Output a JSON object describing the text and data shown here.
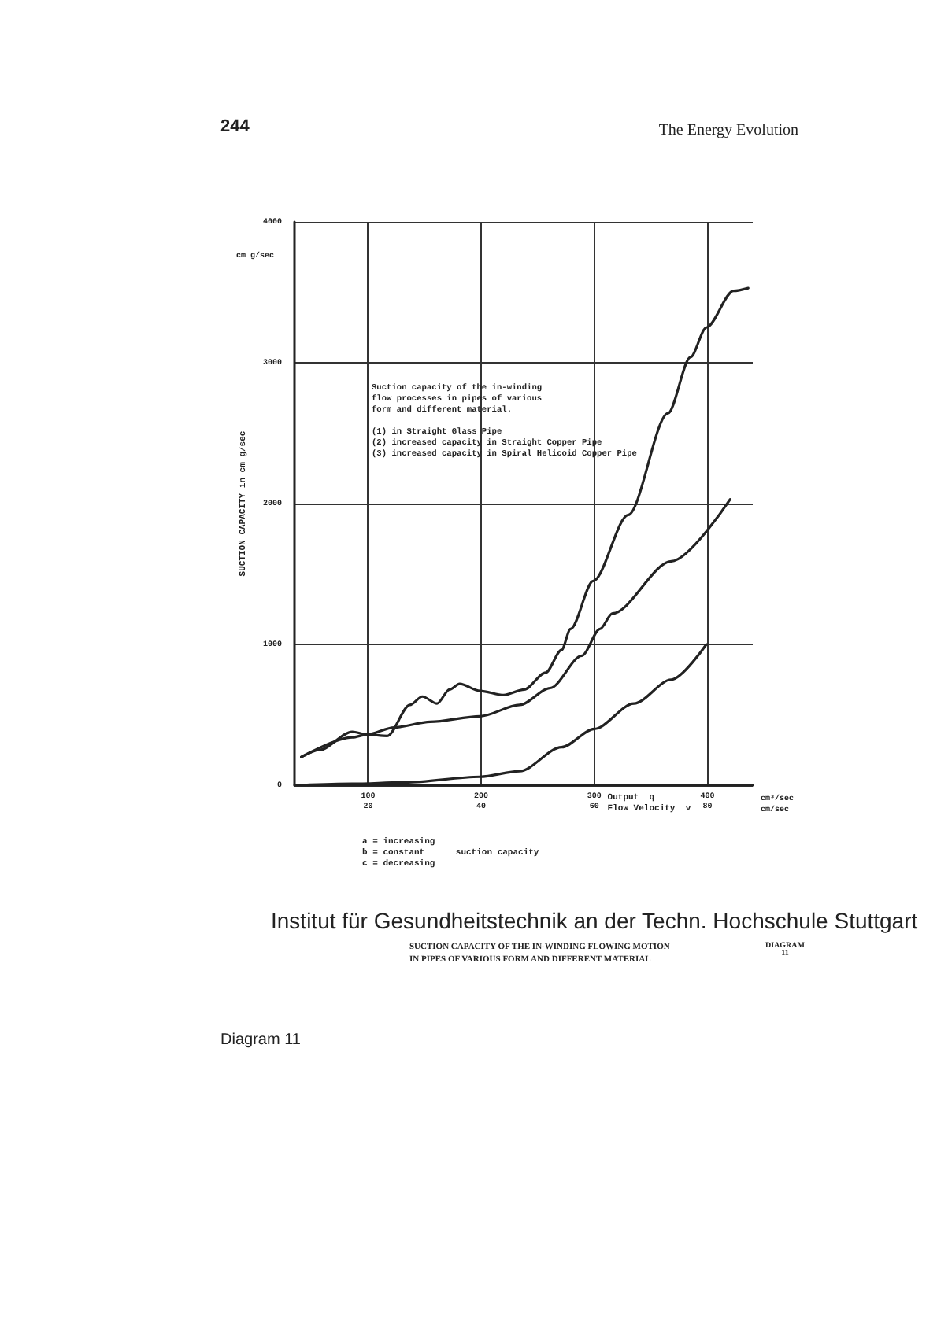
{
  "chart_data": {
    "type": "line",
    "title": "SUCTION CAPACITY OF THE IN-WINDING FLOWING MOTION\nIN PIPES OF VARIOUS FORM AND DIFFERENT MATERIAL",
    "xlabel": "Output  q\nFlow Velocity  v",
    "ylabel": "SUCTION CAPACITY in cm g/sec",
    "xlim": [
      35,
      440
    ],
    "xticks": [
      100,
      200,
      300,
      400
    ],
    "x2lim": [
      7,
      88
    ],
    "x2ticks": [
      20,
      40,
      60,
      80
    ],
    "ylim": [
      0,
      4000
    ],
    "yticks": [
      0,
      1000,
      2000,
      3000,
      4000
    ],
    "grid": true,
    "marker": "none",
    "line_style": "solid",
    "series": [
      {
        "color": "#222222",
        "x": [
          41,
          57,
          86,
          99,
          117,
          137,
          148,
          161,
          172,
          181,
          199,
          220,
          238,
          257,
          271,
          279,
          299,
          330,
          365,
          385,
          399,
          423,
          436
        ],
        "values": [
          200,
          250,
          380,
          360,
          350,
          570,
          630,
          580,
          680,
          720,
          670,
          640,
          680,
          800,
          960,
          1110,
          1450,
          1920,
          2640,
          3040,
          3250,
          3510,
          3530
        ]
      },
      {
        "color": "#222222",
        "x": [
          41,
          86,
          99,
          123,
          155,
          199,
          234,
          261,
          289,
          305,
          316,
          368,
          420
        ],
        "values": [
          200,
          340,
          360,
          410,
          450,
          490,
          570,
          690,
          920,
          1110,
          1220,
          1590,
          2030
        ]
      },
      {
        "color": "#222222",
        "x": [
          41,
          86,
          133,
          199,
          234,
          271,
          300,
          335,
          368,
          399
        ],
        "values": [
          0,
          10,
          20,
          60,
          100,
          270,
          400,
          580,
          750,
          1000
        ]
      }
    ],
    "annotations": [
      "244",
      "The Energy Evolution",
      "Suction capacity of the in-winding\nflow processes in pipes of various\nform and different material.\n\n(1) in Straight Glass Pipe\n(2) increased capacity in Straight Copper Pipe\n(3) increased capacity in Spiral Helicoid Copper Pipe",
      "a = increasing\nb = constant      suction capacity\nc = decreasing",
      "Institut für Gesundheitstechnik an der Techn. Hochschule Stuttgart",
      "DIAGRAM\n11",
      "Diagram 11",
      "cm g/sec",
      "cm³/sec\ncm/sec"
    ]
  }
}
